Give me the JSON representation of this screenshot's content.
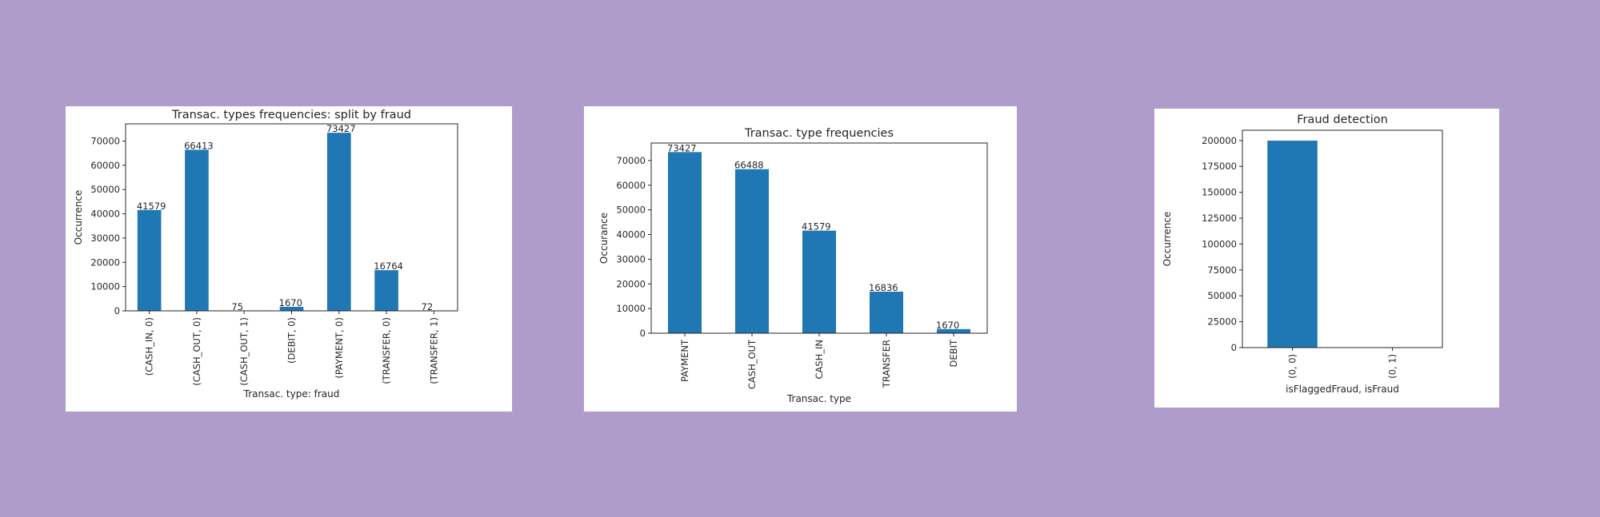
{
  "background": "#b09ccb",
  "bar_color": "#1f77b4",
  "chart_data": [
    {
      "type": "bar",
      "title": "Transac. types frequencies: split by fraud",
      "xlabel": "Transac. type: fraud",
      "ylabel": "Occurrence",
      "categories": [
        "(CASH_IN, 0)",
        "(CASH_OUT, 0)",
        "(CASH_OUT, 1)",
        "(DEBIT, 0)",
        "(PAYMENT, 0)",
        "(TRANSFER, 0)",
        "(TRANSFER, 1)"
      ],
      "values": [
        41579,
        66413,
        75,
        1670,
        73427,
        16764,
        72
      ],
      "data_labels": [
        "41579",
        "66413",
        "75",
        "1670",
        "73427",
        "16764",
        "72"
      ],
      "ylim": [
        0,
        77096
      ],
      "yticks": [
        0,
        10000,
        20000,
        30000,
        40000,
        50000,
        60000,
        70000
      ],
      "grid": false,
      "legend": false
    },
    {
      "type": "bar",
      "title": "Transac. type frequencies",
      "xlabel": "Transac. type",
      "ylabel": "Occurance",
      "categories": [
        "PAYMENT",
        "CASH_OUT",
        "CASH_IN",
        "TRANSFER",
        "DEBIT"
      ],
      "values": [
        73427,
        66488,
        41579,
        16836,
        1670
      ],
      "data_labels": [
        "73427",
        "66488",
        "41579",
        "16836",
        "1670"
      ],
      "ylim": [
        0,
        77096
      ],
      "yticks": [
        0,
        10000,
        20000,
        30000,
        40000,
        50000,
        60000,
        70000
      ],
      "grid": false,
      "legend": false
    },
    {
      "type": "bar",
      "title": "Fraud detection",
      "xlabel": "isFlaggedFraud, isFraud",
      "ylabel": "Occurrence",
      "categories": [
        "(0, 0)",
        "(0, 1)"
      ],
      "values": [
        199853,
        147
      ],
      "data_labels": [],
      "ylim": [
        0,
        209900
      ],
      "yticks": [
        0,
        25000,
        50000,
        75000,
        100000,
        125000,
        150000,
        175000,
        200000
      ],
      "grid": false,
      "legend": false
    }
  ]
}
